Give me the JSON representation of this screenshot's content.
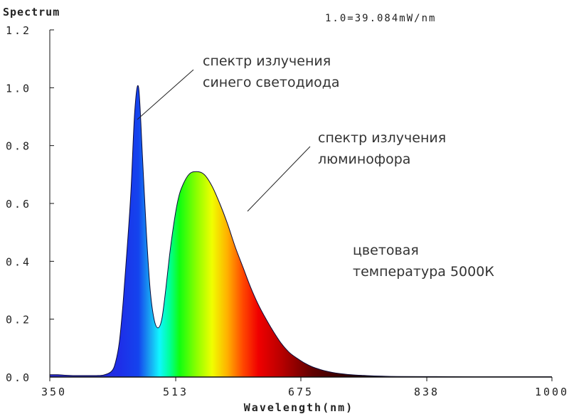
{
  "chart_data": {
    "type": "area",
    "title": "Spectrum",
    "scale_note": "1.0=39.084mW/nm",
    "xlabel": "Wavelength(nm)",
    "ylabel": "",
    "xlim": [
      350,
      1000
    ],
    "ylim": [
      0,
      1.2
    ],
    "x_ticks": [
      350,
      513,
      675,
      838,
      1000
    ],
    "x_tick_labels": [
      "350",
      "513",
      "675",
      "838",
      "1000"
    ],
    "y_ticks": [
      0,
      0.2,
      0.4,
      0.6,
      0.8,
      1.0,
      1.2
    ],
    "y_tick_labels": [
      "0.0",
      "0.2",
      "0.4",
      "0.6",
      "0.8",
      "1.0",
      "1.2"
    ],
    "grid": false,
    "x": [
      350,
      360,
      370,
      380,
      390,
      400,
      410,
      420,
      430,
      435,
      440,
      445,
      450,
      455,
      460,
      465,
      470,
      475,
      480,
      485,
      490,
      495,
      500,
      505,
      510,
      515,
      520,
      530,
      540,
      550,
      560,
      570,
      580,
      590,
      600,
      610,
      620,
      630,
      640,
      650,
      660,
      670,
      680,
      690,
      700,
      710,
      720,
      740,
      760,
      780,
      800,
      850,
      900,
      950,
      1000
    ],
    "values": [
      0.008,
      0.008,
      0.006,
      0.005,
      0.005,
      0.005,
      0.005,
      0.007,
      0.02,
      0.05,
      0.12,
      0.26,
      0.44,
      0.64,
      0.92,
      1.0,
      0.76,
      0.5,
      0.3,
      0.2,
      0.17,
      0.2,
      0.3,
      0.42,
      0.52,
      0.6,
      0.65,
      0.7,
      0.71,
      0.7,
      0.66,
      0.6,
      0.53,
      0.45,
      0.38,
      0.31,
      0.25,
      0.2,
      0.155,
      0.115,
      0.085,
      0.065,
      0.048,
      0.035,
      0.026,
      0.019,
      0.014,
      0.008,
      0.005,
      0.003,
      0.002,
      0.0015,
      0.001,
      0.001,
      0.001
    ],
    "annotations": [
      {
        "lines": [
          "спектр излучения",
          "синего светодиода"
        ],
        "target_x": 466,
        "target_y": 0.92
      },
      {
        "lines": [
          "спектр излучения",
          "люминофора"
        ],
        "target_x": 583,
        "target_y": 0.57
      },
      {
        "lines": [
          "цветовая",
          "температура 5000К"
        ]
      }
    ],
    "fill_colors": [
      {
        "nm": 400,
        "color": "#2a2acf"
      },
      {
        "nm": 440,
        "color": "#1e2ee8"
      },
      {
        "nm": 465,
        "color": "#1444ee"
      },
      {
        "nm": 480,
        "color": "#18a6f2"
      },
      {
        "nm": 492,
        "color": "#10f6ff"
      },
      {
        "nm": 505,
        "color": "#00ff9a"
      },
      {
        "nm": 518,
        "color": "#10ff10"
      },
      {
        "nm": 540,
        "color": "#8cff00"
      },
      {
        "nm": 560,
        "color": "#f0ff00"
      },
      {
        "nm": 580,
        "color": "#ffb000"
      },
      {
        "nm": 600,
        "color": "#ff4800"
      },
      {
        "nm": 620,
        "color": "#f00000"
      },
      {
        "nm": 650,
        "color": "#b80000"
      },
      {
        "nm": 690,
        "color": "#600000"
      },
      {
        "nm": 740,
        "color": "#2a0000"
      },
      {
        "nm": 800,
        "color": "#111111"
      },
      {
        "nm": 1000,
        "color": "#111111"
      }
    ]
  }
}
